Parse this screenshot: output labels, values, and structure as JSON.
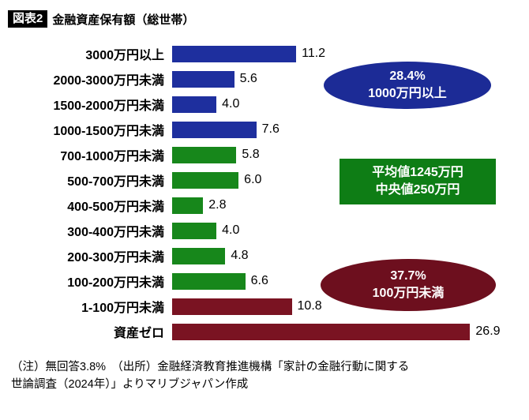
{
  "header": {
    "badge": "図表2",
    "title": "金融資産保有額（総世帯）"
  },
  "chart_data": {
    "type": "bar",
    "orientation": "horizontal",
    "title": "金融資産保有額（総世帯）",
    "unit": "%",
    "grid": false,
    "legend": false,
    "categories": [
      "3000万円以上",
      "2000-3000万円未満",
      "1500-2000万円未満",
      "1000-1500万円未満",
      "700-1000万円未満",
      "500-700万円未満",
      "400-500万円未満",
      "300-400万円未満",
      "200-300万円未満",
      "100-200万円未満",
      "1-100万円未満",
      "資産ゼロ"
    ],
    "values": [
      11.2,
      5.6,
      4.0,
      7.6,
      5.8,
      6.0,
      2.8,
      4.0,
      4.8,
      6.6,
      10.8,
      26.9
    ],
    "value_labels": [
      "11.2",
      "5.6",
      "4.0",
      "7.6",
      "5.8",
      "6.0",
      "2.8",
      "4.0",
      "4.8",
      "6.6",
      "10.8",
      "26.9"
    ],
    "groups": [
      "blue",
      "blue",
      "blue",
      "blue",
      "green",
      "green",
      "green",
      "green",
      "green",
      "green",
      "maroon",
      "maroon"
    ],
    "colors": {
      "blue": "#1e2f9e",
      "green": "#17871b",
      "maroon": "#7a1322"
    },
    "xlim": [
      0,
      31.6
    ],
    "annotations": [
      {
        "shape": "ellipse",
        "color": "#1c2b96",
        "lines": [
          "28.4%",
          "1000万円以上"
        ]
      },
      {
        "shape": "rect",
        "color": "#0e7d15",
        "lines": [
          "平均値1245万円",
          "中央値250万円"
        ]
      },
      {
        "shape": "ellipse",
        "color": "#6d0f1e",
        "lines": [
          "37.7%",
          "100万円未満"
        ]
      }
    ]
  },
  "footnote": {
    "line1": "（注）無回答3.8%　（出所）金融経済教育推進機構「家計の金融行動に関する",
    "line2": "世論調査（2024年）」よりマリブジャパン作成"
  }
}
